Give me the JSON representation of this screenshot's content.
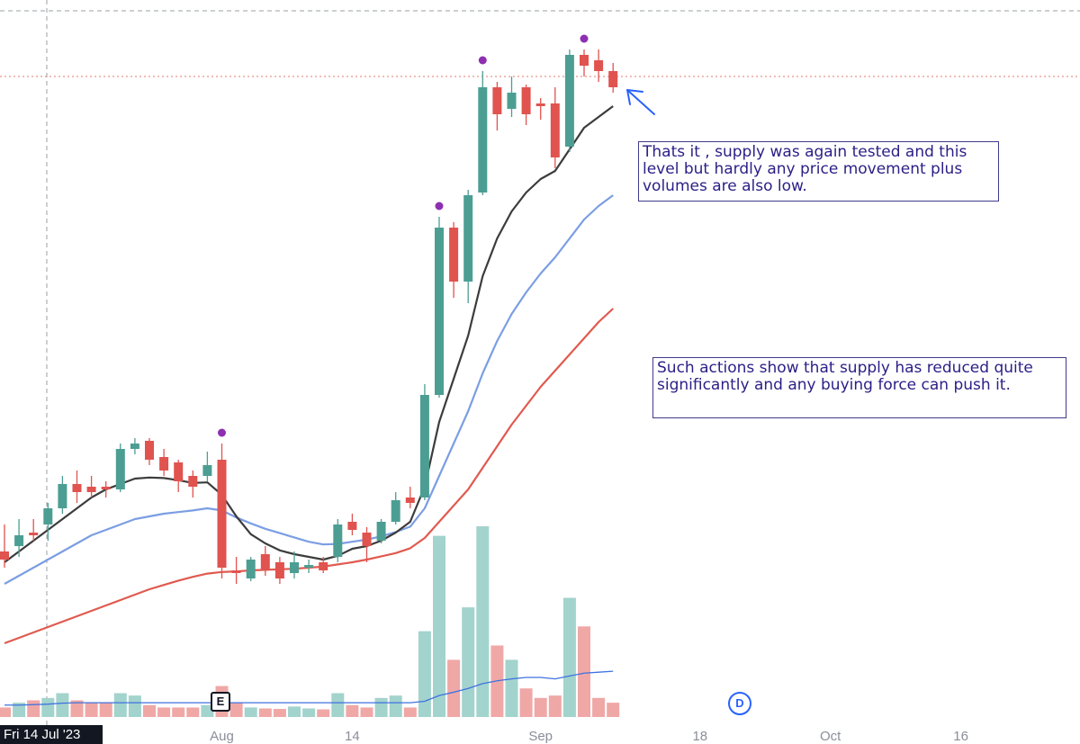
{
  "annotations": [
    "Thats it , supply was again tested and this level but hardly any price movement plus volumes are also low.",
    "Such actions show that supply has reduced quite significantly and any buying force can push it."
  ],
  "crosshair_date": "Fri 14 Jul '23",
  "markers": {
    "earnings": "E",
    "dividend": "D"
  },
  "colors": {
    "up": "#4c9e93",
    "down": "#e0534f",
    "up_volume": "#a3d3cd",
    "down_volume": "#efa8a6",
    "ema_fast": "#3c3c3c",
    "ema_mid": "#7b9ee3",
    "ema_slow": "#e05a4f",
    "signal_dot": "#8e2fb1",
    "volume_ma": "#3d72df",
    "note_text": "#2a1f86"
  },
  "chart_data": {
    "type": "candlestick",
    "x_tick_labels": [
      {
        "label": "Aug",
        "index": 15
      },
      {
        "label": "14",
        "index": 24
      },
      {
        "label": "Sep",
        "index": 37
      },
      {
        "label": "18",
        "index": 48
      },
      {
        "label": "Oct",
        "index": 57
      },
      {
        "label": "16",
        "index": 66
      }
    ],
    "grid": false,
    "price_range": [
      0,
      100
    ],
    "volume_range": [
      0,
      100
    ],
    "candles": [
      {
        "o": 7,
        "h": 12,
        "l": 4,
        "c": 5.5,
        "v": 2
      },
      {
        "o": 8,
        "h": 13,
        "l": 6,
        "c": 10,
        "v": 3
      },
      {
        "o": 10.5,
        "h": 13,
        "l": 9,
        "c": 10,
        "v": 3.5
      },
      {
        "o": 12,
        "h": 16,
        "l": 9,
        "c": 15,
        "v": 4
      },
      {
        "o": 15,
        "h": 21,
        "l": 14,
        "c": 19.5,
        "v": 5
      },
      {
        "o": 19.5,
        "h": 22,
        "l": 16,
        "c": 18,
        "v": 3.5
      },
      {
        "o": 19,
        "h": 21,
        "l": 17,
        "c": 18,
        "v": 3
      },
      {
        "o": 19,
        "h": 20,
        "l": 17,
        "c": 18.5,
        "v": 3
      },
      {
        "o": 18.5,
        "h": 27,
        "l": 18,
        "c": 26,
        "v": 5
      },
      {
        "o": 26,
        "h": 28,
        "l": 25,
        "c": 27,
        "v": 4.5
      },
      {
        "o": 27.5,
        "h": 28,
        "l": 23,
        "c": 24,
        "v": 2.5
      },
      {
        "o": 24.5,
        "h": 26,
        "l": 21,
        "c": 22,
        "v": 2
      },
      {
        "o": 23.5,
        "h": 24,
        "l": 18,
        "c": 20,
        "v": 2
      },
      {
        "o": 21,
        "h": 22,
        "l": 17,
        "c": 19,
        "v": 2
      },
      {
        "o": 21,
        "h": 25.5,
        "l": 20,
        "c": 23,
        "v": 2.5
      },
      {
        "o": 24,
        "h": 27,
        "l": 2,
        "c": 4,
        "v": 6.5,
        "dot": true
      },
      {
        "o": 3.5,
        "h": 6,
        "l": 1,
        "c": 3,
        "v": 3
      },
      {
        "o": 2,
        "h": 6,
        "l": 1.5,
        "c": 5.5,
        "v": 2
      },
      {
        "o": 6.5,
        "h": 8,
        "l": 2.5,
        "c": 3.5,
        "v": 1.8
      },
      {
        "o": 5,
        "h": 6,
        "l": 1,
        "c": 2,
        "v": 1.7
      },
      {
        "o": 3,
        "h": 7,
        "l": 2,
        "c": 5,
        "v": 2.2
      },
      {
        "o": 4,
        "h": 5.5,
        "l": 3,
        "c": 4.5,
        "v": 1.8
      },
      {
        "o": 5,
        "h": 6,
        "l": 3,
        "c": 3.5,
        "v": 1.6
      },
      {
        "o": 6,
        "h": 13,
        "l": 5,
        "c": 12,
        "v": 5
      },
      {
        "o": 12.5,
        "h": 14,
        "l": 10,
        "c": 11,
        "v": 2.5
      },
      {
        "o": 10.5,
        "h": 11.5,
        "l": 5,
        "c": 8,
        "v": 2
      },
      {
        "o": 9,
        "h": 13,
        "l": 8.5,
        "c": 12.5,
        "v": 4
      },
      {
        "o": 12.5,
        "h": 18,
        "l": 12,
        "c": 16.5,
        "v": 4.5
      },
      {
        "o": 17,
        "h": 19,
        "l": 15,
        "c": 16,
        "v": 2
      },
      {
        "o": 17,
        "h": 38,
        "l": 16.5,
        "c": 36,
        "v": 18
      },
      {
        "o": 36,
        "h": 69,
        "l": 35.5,
        "c": 67,
        "v": 38,
        "dot": true
      },
      {
        "o": 67,
        "h": 68,
        "l": 54,
        "c": 57,
        "v": 12
      },
      {
        "o": 57,
        "h": 74,
        "l": 53,
        "c": 73,
        "v": 23
      },
      {
        "o": 73.5,
        "h": 96,
        "l": 73,
        "c": 93,
        "v": 40,
        "dot": true
      },
      {
        "o": 93,
        "h": 94,
        "l": 85,
        "c": 88,
        "v": 15
      },
      {
        "o": 89,
        "h": 95,
        "l": 87.5,
        "c": 92,
        "v": 12
      },
      {
        "o": 93,
        "h": 93.5,
        "l": 86,
        "c": 88,
        "v": 6
      },
      {
        "o": 90,
        "h": 91,
        "l": 87,
        "c": 89.5,
        "v": 4
      },
      {
        "o": 90,
        "h": 93,
        "l": 78,
        "c": 80,
        "v": 4.5
      },
      {
        "o": 82,
        "h": 100,
        "l": 81,
        "c": 99,
        "v": 25
      },
      {
        "o": 99,
        "h": 100,
        "l": 95,
        "c": 97,
        "v": 19,
        "dot": true
      },
      {
        "o": 98,
        "h": 100,
        "l": 94,
        "c": 96,
        "v": 4
      },
      {
        "o": 96,
        "h": 97.5,
        "l": 92,
        "c": 93,
        "v": 3
      }
    ],
    "ema_fast": [
      5,
      7,
      9,
      11,
      13,
      15,
      17,
      18.5,
      19.5,
      20.5,
      20.7,
      20.6,
      20.2,
      19.7,
      19.8,
      17.5,
      13.5,
      10.2,
      8.5,
      7.2,
      6.5,
      6,
      5.5,
      6.2,
      7.5,
      8,
      9,
      10.5,
      12.5,
      19,
      31,
      39,
      47,
      58,
      65,
      70,
      73.5,
      76,
      77.5,
      81.5,
      85.5,
      87.5,
      89.5
    ],
    "ema_mid": [
      1,
      2.5,
      4,
      5.5,
      7,
      8.5,
      10,
      11,
      12,
      13,
      13.5,
      14,
      14.3,
      14.6,
      15,
      14.6,
      13.3,
      12.2,
      11.2,
      10.4,
      9.6,
      8.8,
      8.3,
      8.4,
      8.8,
      9.2,
      9.8,
      10.6,
      11.6,
      15,
      21,
      27,
      33,
      40,
      46,
      51,
      55,
      58.5,
      61.5,
      65,
      68.5,
      71,
      73
    ],
    "ema_slow": [
      -10,
      -9,
      -8,
      -7,
      -6,
      -5,
      -4,
      -3,
      -2,
      -1,
      0,
      0.8,
      1.6,
      2.3,
      2.9,
      3.2,
      3.3,
      3.5,
      3.6,
      3.7,
      3.8,
      4,
      4.2,
      4.6,
      5,
      5.5,
      6.1,
      6.7,
      7.6,
      9.5,
      12.5,
      15.5,
      18.5,
      22.5,
      26.5,
      30.5,
      34,
      37.5,
      40.5,
      43.5,
      46.5,
      49.5,
      52
    ],
    "volume_ma": [
      2.5,
      2.5,
      2.6,
      2.7,
      2.9,
      3,
      3,
      3,
      3,
      3,
      3,
      3,
      3,
      3,
      3,
      3,
      3,
      3,
      3,
      3,
      3,
      3,
      3,
      3,
      3,
      3,
      3,
      3,
      3,
      3.3,
      4.5,
      5.2,
      6,
      7,
      7.6,
      8,
      8.3,
      8.3,
      8,
      8.6,
      9.2,
      9.4,
      9.6
    ]
  }
}
